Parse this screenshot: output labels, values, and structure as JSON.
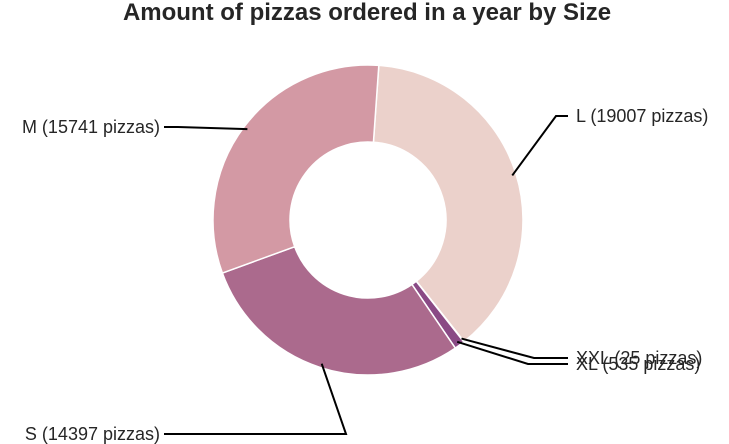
{
  "chart_data": {
    "type": "pie",
    "variant": "donut",
    "title": "Amount of pizzas ordered in a year by Size",
    "slices": [
      {
        "label": "L (19007 pizzas)",
        "category": "L",
        "value": 19007,
        "color": "#ebd1cb"
      },
      {
        "label": "XXL (25 pizzas)",
        "category": "XXL",
        "value": 25,
        "color": "#6b3a6e"
      },
      {
        "label": "XL (535 pizzas)",
        "category": "XL",
        "value": 535,
        "color": "#8a4a85"
      },
      {
        "label": "S (14397 pizzas)",
        "category": "S",
        "value": 14397,
        "color": "#ab6a8d"
      },
      {
        "label": "M (15741 pizzas)",
        "category": "M",
        "value": 15741,
        "color": "#d399a4"
      }
    ]
  }
}
